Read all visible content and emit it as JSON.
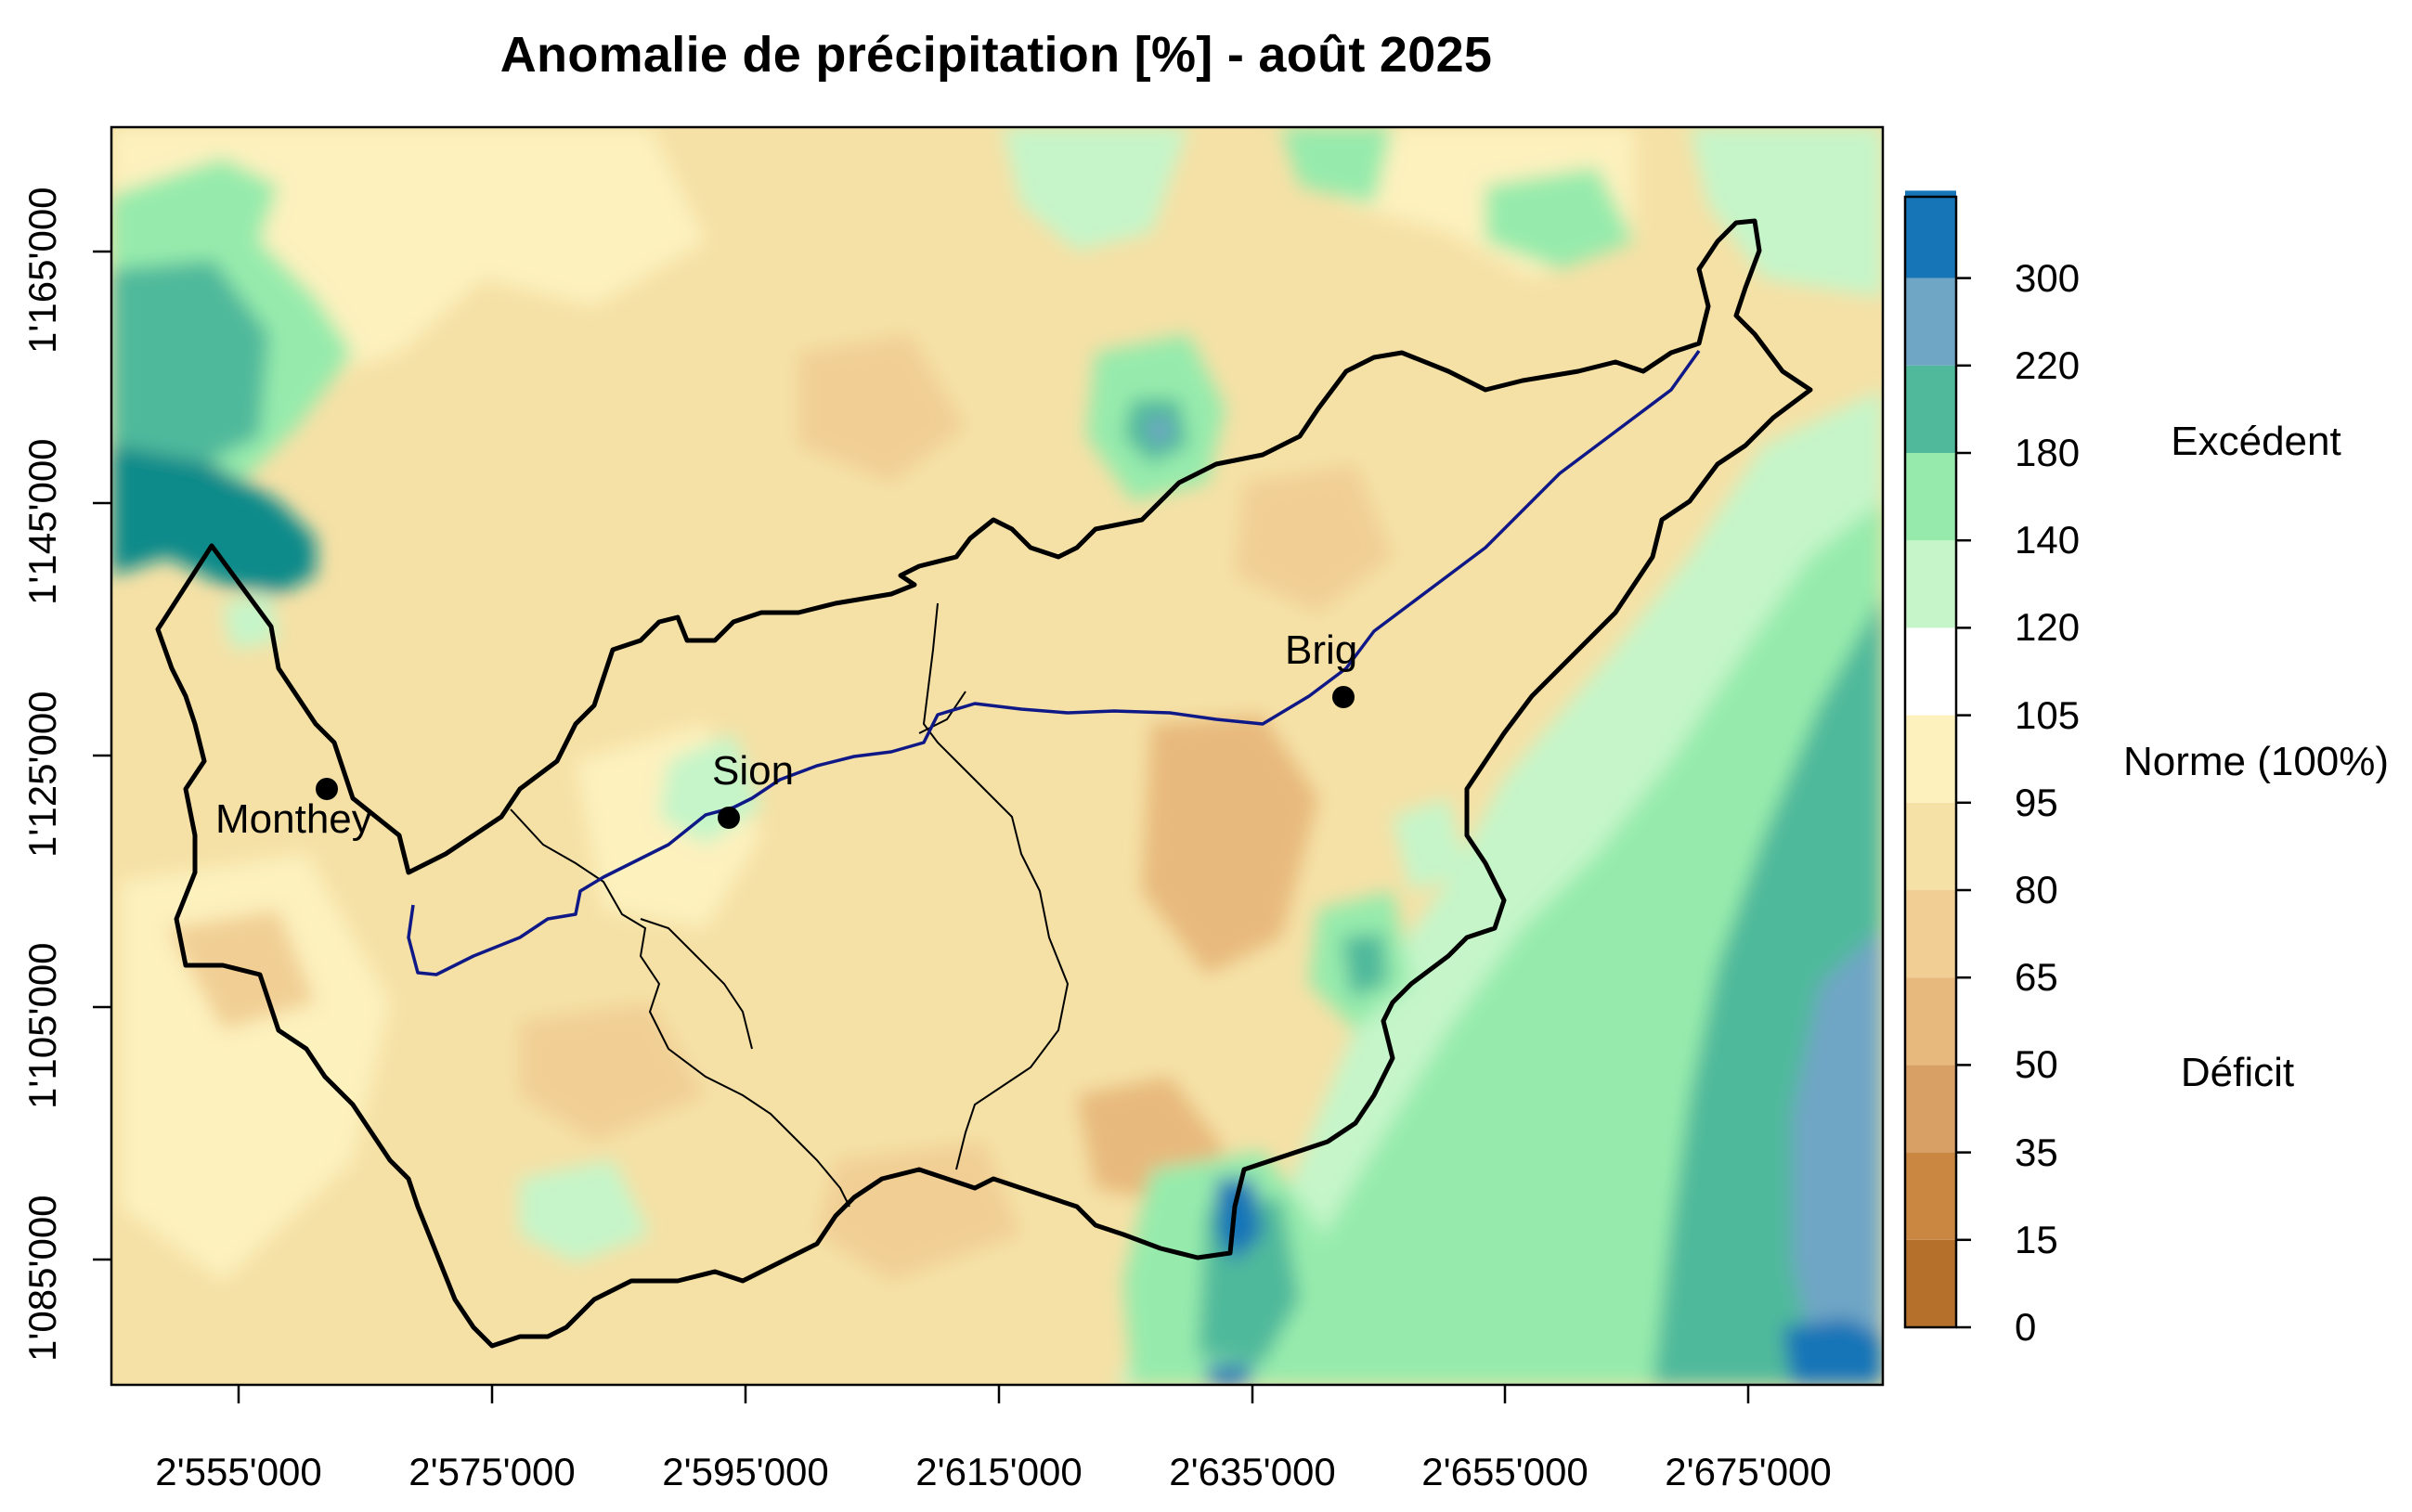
{
  "title": "Anomalie de précipitation [%] - août 2025",
  "y_ticks": [
    "1'085'000",
    "1'105'000",
    "1'125'000",
    "1'145'000",
    "1'165'000"
  ],
  "x_ticks": [
    "2'555'000",
    "2'575'000",
    "2'595'000",
    "2'615'000",
    "2'635'000",
    "2'655'000",
    "2'675'000"
  ],
  "towns": [
    {
      "name": "Monthey"
    },
    {
      "name": "Sion"
    },
    {
      "name": "Brig"
    }
  ],
  "legend": {
    "values": [
      "0",
      "15",
      "35",
      "50",
      "65",
      "80",
      "95",
      "105",
      "120",
      "140",
      "180",
      "220",
      "300"
    ],
    "colors": [
      "#b5712c",
      "#c98741",
      "#d9a066",
      "#e8b97d",
      "#f1cf94",
      "#f5e1a6",
      "#fdf1be",
      "#ffffff",
      "#c5f5c9",
      "#96ebac",
      "#50b99b",
      "#70a6c5",
      "#1675b7",
      "#063d5e"
    ],
    "labels": {
      "excess": "Excédent",
      "norm": "Norme (100%)",
      "deficit": "Déficit"
    }
  }
}
